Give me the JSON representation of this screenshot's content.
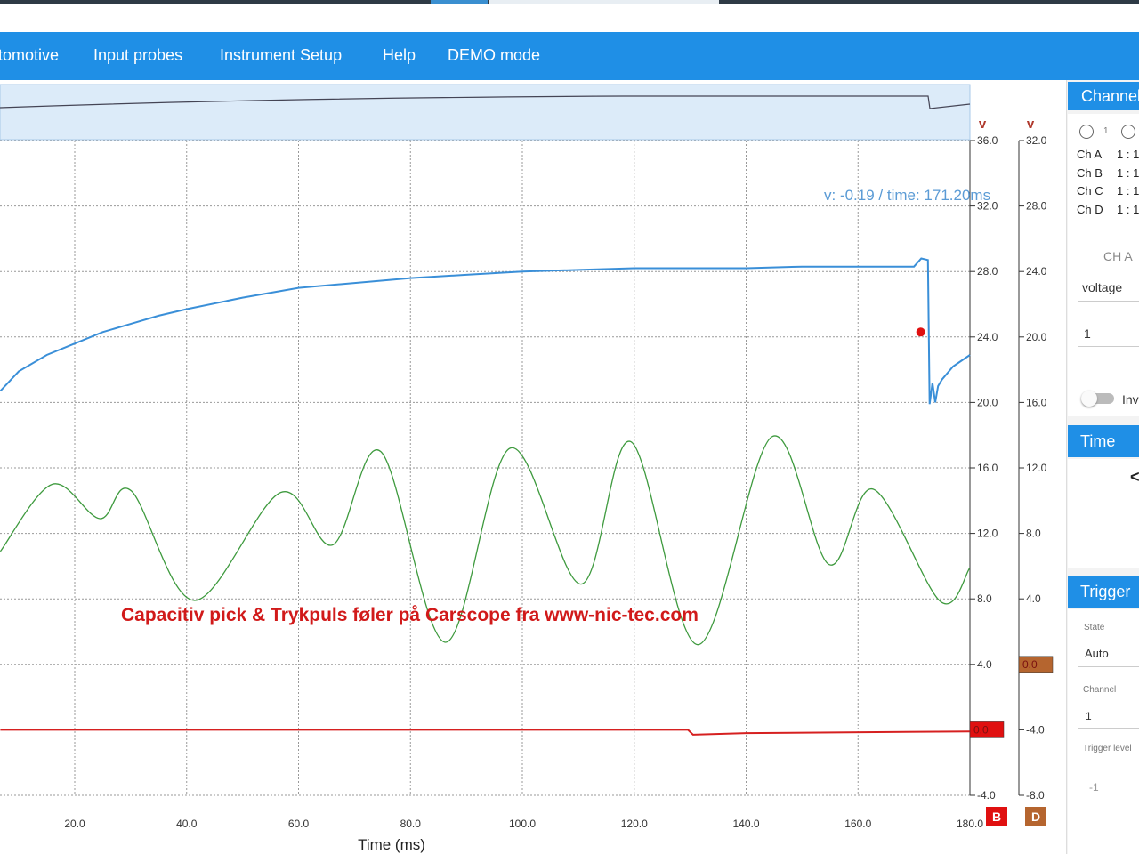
{
  "top_menu": [
    "tomotive",
    "Input probes",
    "Instrument Setup",
    "Help",
    "DEMO mode"
  ],
  "chart_data": {
    "type": "line",
    "x_label": "Time (ms)",
    "y_label": "v",
    "y2_label": "v",
    "xlim": [
      0,
      180
    ],
    "xticks": [
      {
        "value": 20,
        "label": "20.0"
      },
      {
        "value": 40,
        "label": "40.0"
      },
      {
        "value": 60,
        "label": "60.0"
      },
      {
        "value": 80,
        "label": "80.0"
      },
      {
        "value": 100,
        "label": "100.0"
      },
      {
        "value": 120,
        "label": "120.0"
      },
      {
        "value": 140,
        "label": "140.0"
      },
      {
        "value": 160,
        "label": "160.0"
      },
      {
        "value": 180,
        "label": "180.0"
      }
    ],
    "ylim": [
      -4,
      36
    ],
    "yticks": [
      {
        "value": 36,
        "label": "36.0"
      },
      {
        "value": 32,
        "label": "32.0"
      },
      {
        "value": 28,
        "label": "28.0"
      },
      {
        "value": 24,
        "label": "24.0"
      },
      {
        "value": 20,
        "label": "20.0"
      },
      {
        "value": 16,
        "label": "16.0"
      },
      {
        "value": 12,
        "label": "12.0"
      },
      {
        "value": 8,
        "label": "8.0"
      },
      {
        "value": 4,
        "label": "4.0"
      },
      {
        "value": -4,
        "label": "-4.0"
      }
    ],
    "y2lim": [
      -8,
      32
    ],
    "y2ticks": [
      {
        "value": 32,
        "label": "32.0"
      },
      {
        "value": 28,
        "label": "28.0"
      },
      {
        "value": 24,
        "label": "24.0"
      },
      {
        "value": 20,
        "label": "20.0"
      },
      {
        "value": 16,
        "label": "16.0"
      },
      {
        "value": 12,
        "label": "12.0"
      },
      {
        "value": 8,
        "label": "8.0"
      },
      {
        "value": 4,
        "label": "4.0"
      },
      {
        "value": -4,
        "label": "-4.0"
      },
      {
        "value": -8,
        "label": "-8.0"
      }
    ],
    "grid": true,
    "cursor_label": "v: -0.19 / time: 171.20ms",
    "cursor": {
      "x": 171.2,
      "y": 24.3
    },
    "annotation": "Capacitiv pick & Trykpuls føler på Carscope fra www-nic-tec.com",
    "series": [
      {
        "color": "#3a8fd8",
        "smooth": false,
        "x": [
          6.7,
          10,
          15,
          20,
          25,
          30,
          35,
          40,
          50,
          60,
          70,
          80,
          90,
          100,
          110,
          120,
          130,
          140,
          150,
          160,
          170,
          171.3,
          172.5,
          172.8,
          173.3,
          173.8,
          174.3,
          175,
          177,
          180
        ],
        "values": [
          20.7,
          21.9,
          22.9,
          23.6,
          24.3,
          24.8,
          25.3,
          25.7,
          26.4,
          27.0,
          27.3,
          27.6,
          27.8,
          28.0,
          28.1,
          28.2,
          28.2,
          28.2,
          28.3,
          28.3,
          28.3,
          28.8,
          28.7,
          19.9,
          21.2,
          20.0,
          21.0,
          21.4,
          22.2,
          22.9
        ]
      },
      {
        "color": "#3e9a3e",
        "smooth": true,
        "x": [
          6.7,
          16,
          24.5,
          30.1,
          41.4,
          56.8,
          66.1,
          74.7,
          86.3,
          97.8,
          110.5,
          119.4,
          131.4,
          144.6,
          154.8,
          162.7,
          174.7,
          180
        ],
        "values": [
          10.9,
          15.0,
          12.9,
          14.6,
          7.9,
          14.5,
          11.3,
          17.0,
          5.35,
          17.2,
          8.9,
          17.6,
          5.2,
          17.9,
          10.1,
          14.7,
          7.85,
          9.9
        ]
      },
      {
        "color": "#d62020",
        "smooth": false,
        "x": [
          6.7,
          129.6,
          130.5,
          140,
          180
        ],
        "values": [
          0.0,
          0.0,
          -0.3,
          -0.2,
          -0.1
        ]
      }
    ],
    "channel_markers": [
      {
        "label": "0.0",
        "axis": "y",
        "value": 0,
        "color": "#e01010"
      },
      {
        "label": "0.0",
        "axis": "y2",
        "value": 0,
        "color": "#b5652f"
      }
    ],
    "channel_buttons": [
      {
        "label": "B",
        "color": "#e01010"
      },
      {
        "label": "D",
        "color": "#b5652f"
      }
    ]
  },
  "sidebar": {
    "channels": {
      "title": "Channels",
      "radio_label": "1",
      "rows": [
        [
          "Ch A",
          "1 : 1"
        ],
        [
          "Ch B",
          "1 : 1"
        ],
        [
          "Ch C",
          "1 : 1"
        ],
        [
          "Ch D",
          "1 : 1"
        ]
      ],
      "selected": "CH A",
      "quantity": "voltage",
      "factor": "1",
      "invert": "Inv"
    },
    "time": {
      "title": "Time",
      "button": "<"
    },
    "trigger": {
      "title": "Trigger",
      "state_label": "State",
      "state": "Auto",
      "channel_label": "Channel",
      "channel": "1",
      "level_label": "Trigger level",
      "level": "-1"
    }
  }
}
